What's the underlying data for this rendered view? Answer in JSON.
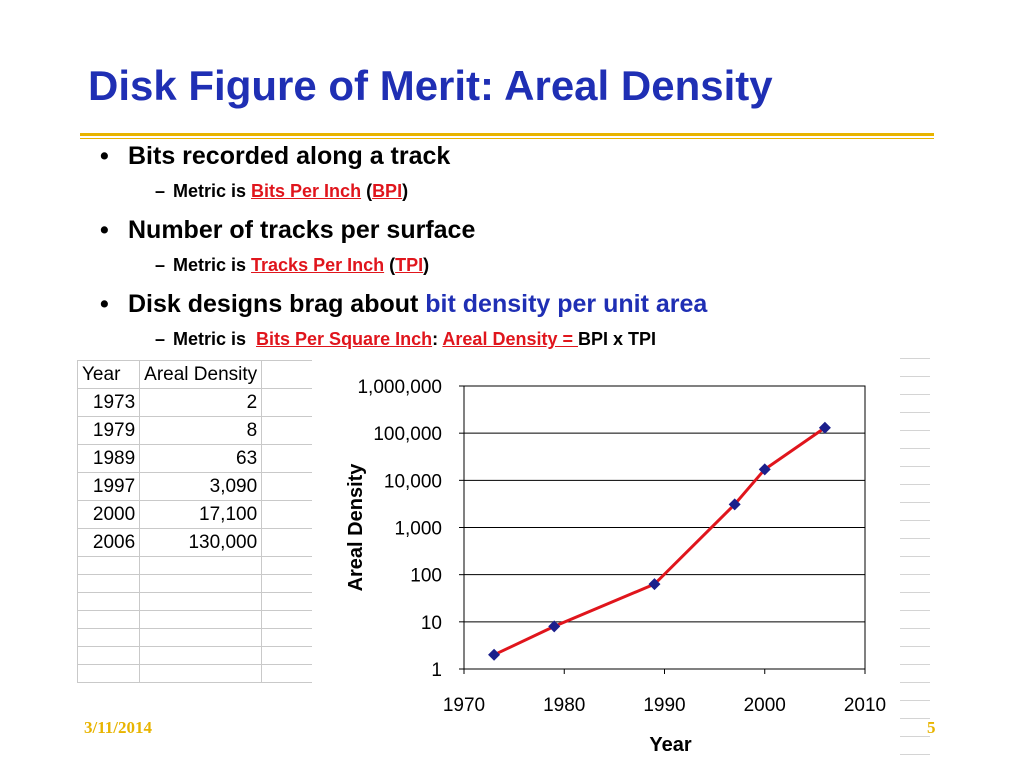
{
  "slide": {
    "title": "Disk Figure of Merit: Areal Density",
    "bullets": [
      {
        "text": "Bits recorded along a track",
        "sub": {
          "prefix": "Metric is ",
          "link": "Bits Per Inch",
          "open": " (",
          "abbr": "BPI",
          "close": ")"
        }
      },
      {
        "text": "Number of tracks per surface",
        "sub": {
          "prefix": "Metric is ",
          "link": "Tracks Per Inch",
          "open": " (",
          "abbr": "TPI",
          "close": ")"
        }
      },
      {
        "text": "Disk designs brag about ",
        "highlight": "bit density per unit area",
        "sub": {
          "prefix": "Metric is  ",
          "link": "Bits Per Square Inch",
          "colon": ": ",
          "link2": "Areal Density",
          "eq": " = ",
          "rest": "BPI x TPI"
        }
      }
    ],
    "footer": {
      "date": "3/11/2014",
      "page": "5"
    }
  },
  "table": {
    "headers": [
      "Year",
      "Areal Density"
    ],
    "rows": [
      [
        "1973",
        "2"
      ],
      [
        "1979",
        "8"
      ],
      [
        "1989",
        "63"
      ],
      [
        "1997",
        "3,090"
      ],
      [
        "2000",
        "17,100"
      ],
      [
        "2006",
        "130,000"
      ]
    ]
  },
  "chart_data": {
    "type": "line",
    "title": "",
    "xlabel": "Year",
    "ylabel": "Areal Density",
    "yscale": "log",
    "xlim": [
      1970,
      2010
    ],
    "ylim": [
      1,
      1000000
    ],
    "x_ticks": [
      "1970",
      "1980",
      "1990",
      "2000",
      "2010"
    ],
    "y_ticks": [
      "1",
      "10",
      "100",
      "1,000",
      "10,000",
      "100,000",
      "1,000,000"
    ],
    "grid": "horizontal",
    "legend": "none",
    "series": [
      {
        "x": [
          1973,
          1979,
          1989,
          1997,
          2000,
          2006
        ],
        "y": [
          2,
          8,
          63,
          3090,
          17100,
          130000
        ],
        "line_color": "#e0151c",
        "marker_color": "#1b1f8c",
        "marker": "diamond"
      }
    ]
  },
  "colors": {
    "title": "#1f2fb4",
    "accent": "#e8b400",
    "link": "#e0151c"
  }
}
